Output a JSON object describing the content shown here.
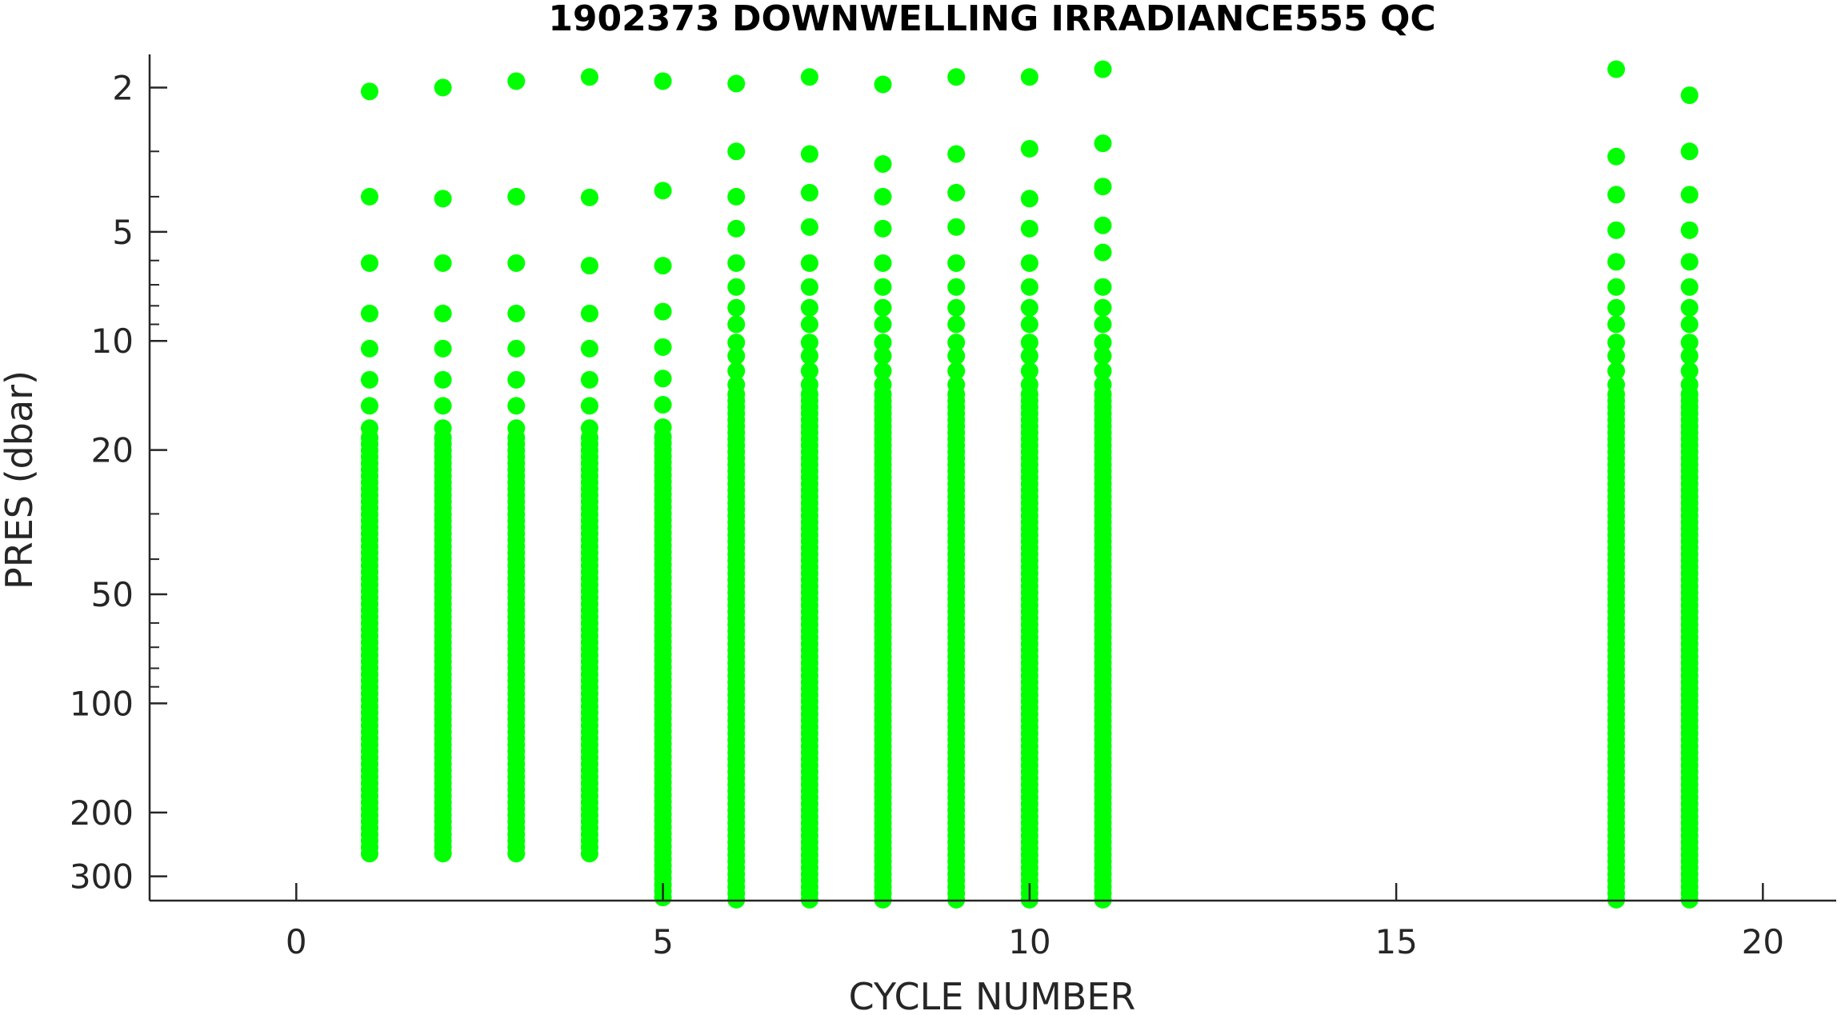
{
  "chart_data": {
    "type": "scatter",
    "title": "1902373  DOWNWELLING IRRADIANCE555 QC",
    "xlabel": "CYCLE NUMBER",
    "ylabel": "PRES (dbar)",
    "xlim": [
      -2,
      21
    ],
    "ylim": [
      1.62,
      350
    ],
    "y_scale": "log",
    "y_reversed": true,
    "grid": false,
    "marker_color": "#00ff00",
    "x_ticks": [
      0,
      5,
      10,
      15,
      20
    ],
    "x_tick_labels": [
      "0",
      "5",
      "10",
      "15",
      "20"
    ],
    "y_ticks": [
      2,
      5,
      10,
      20,
      50,
      100,
      200,
      300
    ],
    "y_tick_labels": [
      "2",
      "5",
      "10",
      "20",
      "50",
      "100",
      "200",
      "300"
    ],
    "series": [
      {
        "x": 1,
        "pres": [
          2.05,
          4.0,
          6.1,
          8.4,
          10.5,
          12.8,
          15.1,
          17.4
        ],
        "pres_max": 260
      },
      {
        "x": 2,
        "pres": [
          2.0,
          4.05,
          6.1,
          8.4,
          10.5,
          12.8,
          15.1,
          17.4
        ],
        "pres_max": 260
      },
      {
        "x": 3,
        "pres": [
          1.92,
          4.0,
          6.1,
          8.4,
          10.5,
          12.8,
          15.1,
          17.4
        ],
        "pres_max": 260
      },
      {
        "x": 4,
        "pres": [
          1.87,
          4.02,
          6.2,
          8.4,
          10.5,
          12.8,
          15.1,
          17.4
        ],
        "pres_max": 260
      },
      {
        "x": 5,
        "pres": [
          1.92,
          3.85,
          6.2,
          8.3,
          10.4,
          12.7,
          15.0,
          17.3
        ],
        "pres_max": 350
      },
      {
        "x": 6,
        "pres": [
          1.95,
          3.0,
          4.0,
          4.9,
          6.1,
          7.1,
          8.1,
          9.0,
          10.1,
          11.0,
          12.1,
          13.2
        ],
        "pres_max": 350
      },
      {
        "x": 7,
        "pres": [
          1.87,
          3.05,
          3.9,
          4.85,
          6.1,
          7.1,
          8.1,
          9.0,
          10.1,
          11.0,
          12.1,
          13.2
        ],
        "pres_max": 350
      },
      {
        "x": 8,
        "pres": [
          1.96,
          3.25,
          4.0,
          4.9,
          6.1,
          7.1,
          8.1,
          9.0,
          10.1,
          11.0,
          12.1,
          13.2
        ],
        "pres_max": 350
      },
      {
        "x": 9,
        "pres": [
          1.87,
          3.05,
          3.9,
          4.85,
          6.1,
          7.1,
          8.1,
          9.0,
          10.1,
          11.0,
          12.1,
          13.2
        ],
        "pres_max": 350
      },
      {
        "x": 10,
        "pres": [
          1.87,
          2.95,
          4.05,
          4.9,
          6.1,
          7.1,
          8.1,
          9.0,
          10.1,
          11.0,
          12.1,
          13.2
        ],
        "pres_max": 350
      },
      {
        "x": 11,
        "pres": [
          1.78,
          2.85,
          3.75,
          4.8,
          5.7,
          7.1,
          8.1,
          9.0,
          10.1,
          11.0,
          12.1,
          13.2
        ],
        "pres_max": 350
      },
      {
        "x": 18,
        "pres": [
          1.78,
          3.1,
          3.95,
          4.95,
          6.05,
          7.1,
          8.1,
          9.0,
          10.1,
          11.0,
          12.1,
          13.2
        ],
        "pres_max": 350
      },
      {
        "x": 19,
        "pres": [
          2.1,
          3.0,
          3.95,
          4.95,
          6.05,
          7.1,
          8.1,
          9.0,
          10.1,
          11.0,
          12.1,
          13.2
        ],
        "pres_max": 350
      }
    ]
  }
}
